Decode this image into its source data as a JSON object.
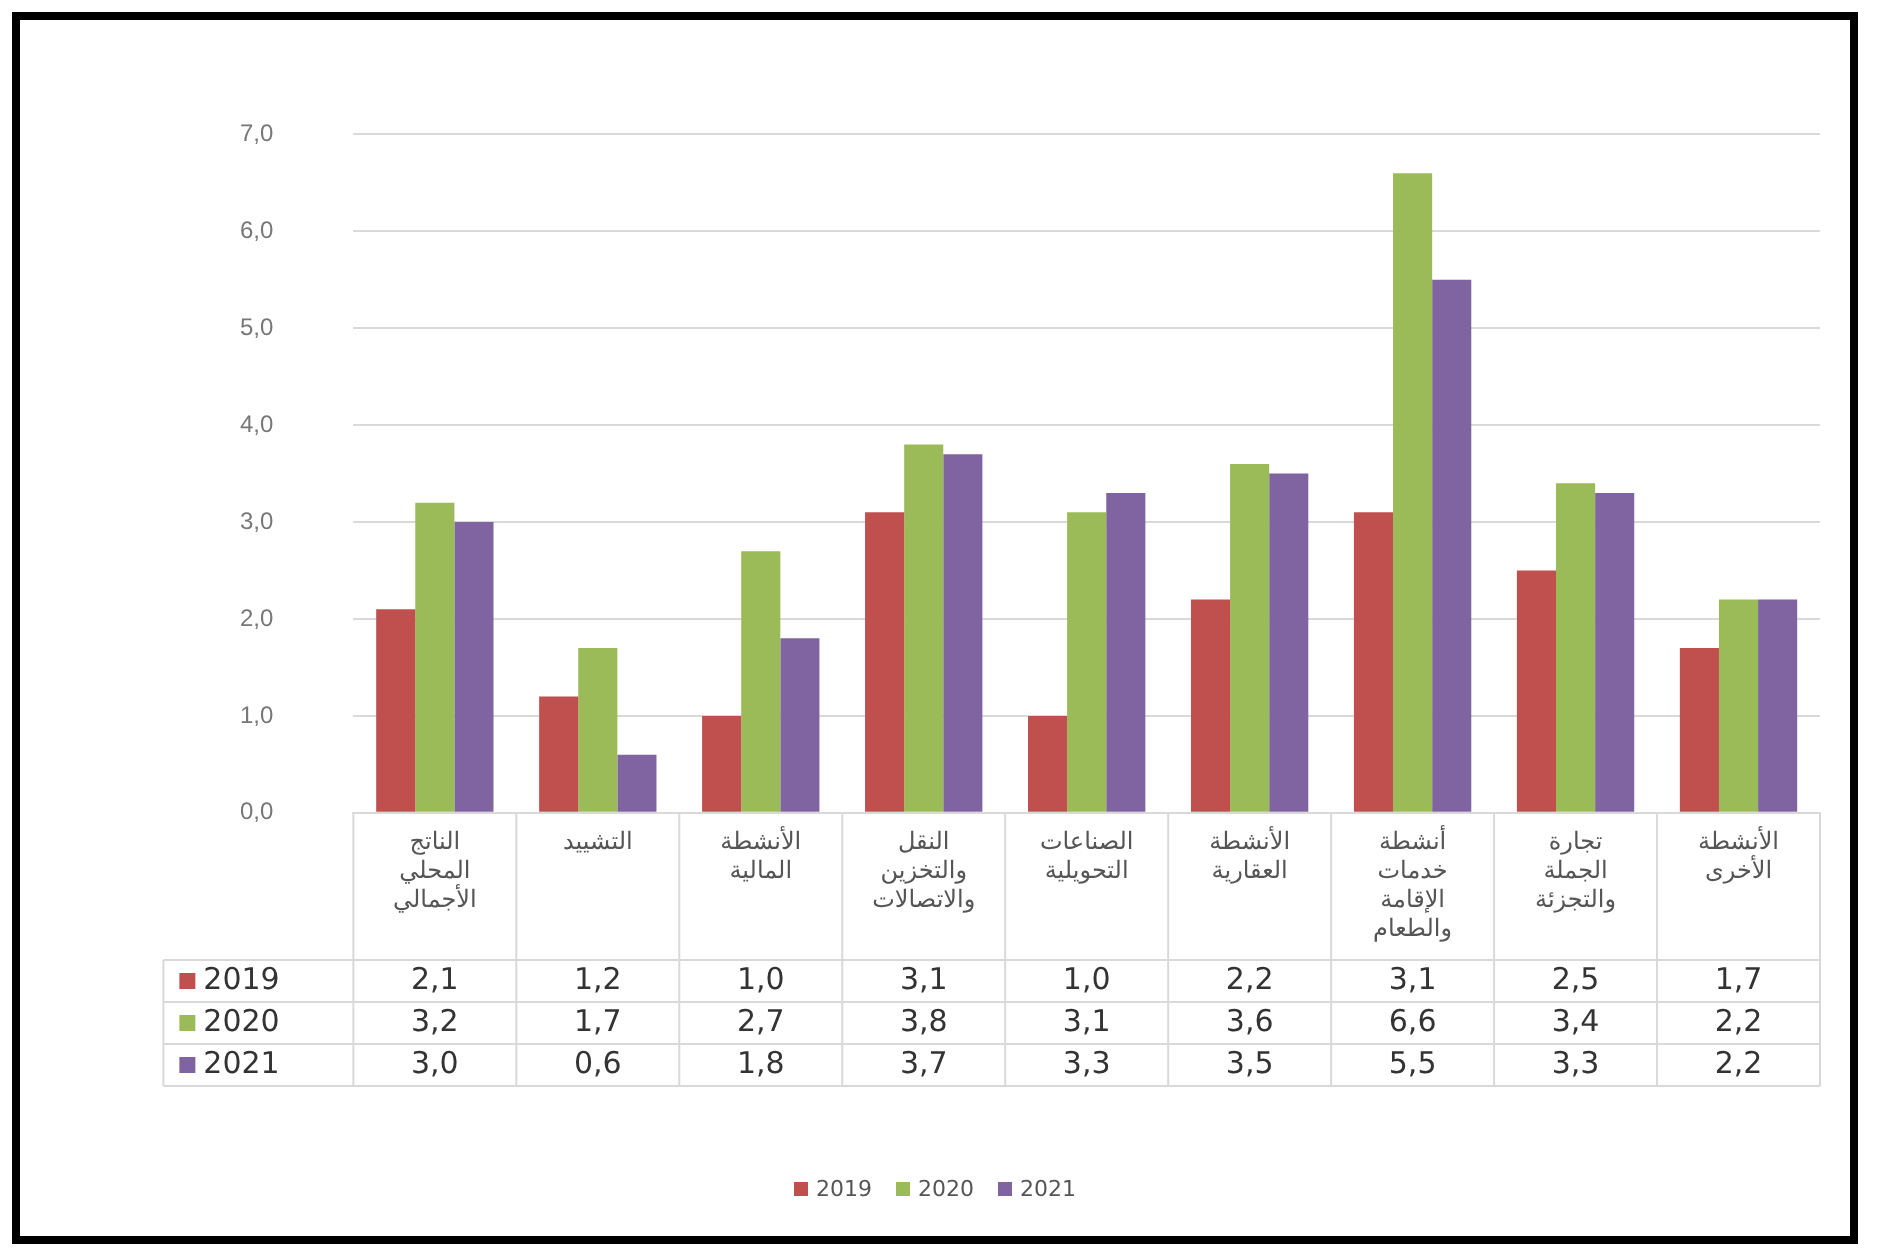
{
  "chart_data": {
    "type": "bar",
    "categories": [
      "الناتج المحلي الأجمالي",
      "التشييد",
      "الأنشطة المالية",
      "النقل والتخزين والاتصالات",
      "الصناعات التحويلية",
      "الأنشطة العقارية",
      "أنشطة خدمات الإقامة والطعام",
      "تجارة الجملة والتجزئة",
      "الأنشطة الأخرى"
    ],
    "series": [
      {
        "name": "2019",
        "color": "#c0504d",
        "values": [
          2.1,
          1.2,
          1.0,
          3.1,
          1.0,
          2.2,
          3.1,
          2.5,
          1.7
        ],
        "value_labels": [
          "2,1",
          "1,2",
          "1,0",
          "3,1",
          "1,0",
          "2,2",
          "3,1",
          "2,5",
          "1,7"
        ]
      },
      {
        "name": "2020",
        "color": "#9bbb59",
        "values": [
          3.2,
          1.7,
          2.7,
          3.8,
          3.1,
          3.6,
          6.6,
          3.4,
          2.2
        ],
        "value_labels": [
          "3,2",
          "1,7",
          "2,7",
          "3,8",
          "3,1",
          "3,6",
          "6,6",
          "3,4",
          "2,2"
        ]
      },
      {
        "name": "2021",
        "color": "#8064a2",
        "values": [
          3.0,
          0.6,
          1.8,
          3.7,
          3.3,
          3.5,
          5.5,
          3.3,
          2.2
        ],
        "value_labels": [
          "3,0",
          "0,6",
          "1,8",
          "3,7",
          "3,3",
          "3,5",
          "5,5",
          "3,3",
          "2,2"
        ]
      }
    ],
    "ylim": [
      0,
      7
    ],
    "yticks": [
      {
        "value": 0,
        "label": "0,0"
      },
      {
        "value": 1,
        "label": "1,0"
      },
      {
        "value": 2,
        "label": "2,0"
      },
      {
        "value": 3,
        "label": "3,0"
      },
      {
        "value": 4,
        "label": "4,0"
      },
      {
        "value": 5,
        "label": "5,0"
      },
      {
        "value": 6,
        "label": "6,0"
      },
      {
        "value": 7,
        "label": "7,0"
      }
    ],
    "grid": "y",
    "legend": "bottom"
  }
}
